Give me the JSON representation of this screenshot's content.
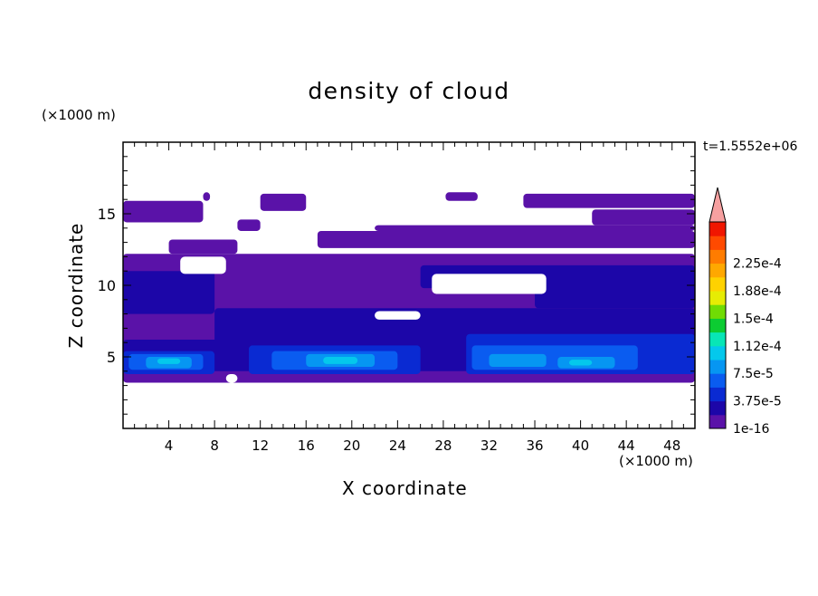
{
  "chart_data": {
    "type": "heatmap",
    "title": "density of cloud",
    "xlabel": "X coordinate",
    "ylabel": "Z coordinate",
    "x_unit": "(×1000 m)",
    "y_unit": "(×1000 m)",
    "time_label": "t=1.5552e+06",
    "xlim": [
      0,
      50
    ],
    "ylim": [
      0,
      20
    ],
    "x_ticks": [
      "4",
      "8",
      "12",
      "16",
      "20",
      "24",
      "28",
      "32",
      "36",
      "40",
      "44",
      "48"
    ],
    "y_ticks": [
      "5",
      "10",
      "15"
    ],
    "colorbar": {
      "levels": [
        "1e-16",
        "3.75e-5",
        "7.5e-5",
        "1.12e-4",
        "1.5e-4",
        "1.88e-4",
        "2.25e-4"
      ],
      "colors": [
        "#5a12a8",
        "#1c06a8",
        "#0a2ad2",
        "#0a5cf0",
        "#0696f2",
        "#04c8ec",
        "#08e6b6",
        "#0ccc32",
        "#70dc04",
        "#e6ec04",
        "#ffd200",
        "#ffa800",
        "#ff7c00",
        "#ff4a00",
        "#f01600"
      ],
      "extend_color": "#f6a0a0"
    },
    "regions": [
      {
        "level": 0,
        "x": [
          0,
          7
        ],
        "z": [
          14.4,
          15.9
        ]
      },
      {
        "level": 0,
        "x": [
          7,
          7.6
        ],
        "z": [
          15.9,
          16.5
        ]
      },
      {
        "level": 0,
        "x": [
          12,
          16
        ],
        "z": [
          15.2,
          16.4
        ]
      },
      {
        "level": 0,
        "x": [
          10,
          12
        ],
        "z": [
          13.8,
          14.6
        ]
      },
      {
        "level": 0,
        "x": [
          28.2,
          31
        ],
        "z": [
          15.9,
          16.5
        ]
      },
      {
        "level": 0,
        "x": [
          35,
          50
        ],
        "z": [
          15.4,
          16.4
        ]
      },
      {
        "level": 0,
        "x": [
          41,
          50
        ],
        "z": [
          14.2,
          15.3
        ]
      },
      {
        "level": 0,
        "x": [
          22,
          50
        ],
        "z": [
          13.8,
          14.2
        ]
      },
      {
        "level": 0,
        "x": [
          17,
          50
        ],
        "z": [
          12.6,
          13.8
        ]
      },
      {
        "level": 0,
        "x": [
          4,
          10
        ],
        "z": [
          12.2,
          13.2
        ]
      },
      {
        "level": 0,
        "x": [
          0,
          50
        ],
        "z": [
          3.4,
          12.2
        ]
      },
      {
        "level": 0,
        "x": [
          0,
          50
        ],
        "z": [
          3.2,
          4.4
        ]
      },
      {
        "level": 1,
        "x": [
          0,
          8
        ],
        "z": [
          8,
          11
        ]
      },
      {
        "level": 1,
        "x": [
          8,
          50
        ],
        "z": [
          4.8,
          8.4
        ]
      },
      {
        "level": 1,
        "x": [
          26,
          50
        ],
        "z": [
          9.8,
          11.4
        ]
      },
      {
        "level": 1,
        "x": [
          36,
          50
        ],
        "z": [
          8.4,
          10.6
        ]
      },
      {
        "level": 1,
        "x": [
          0,
          50
        ],
        "z": [
          4,
          6.2
        ]
      },
      {
        "level": 2,
        "x": [
          0,
          8
        ],
        "z": [
          3.8,
          5.4
        ]
      },
      {
        "level": 2,
        "x": [
          11,
          26
        ],
        "z": [
          3.8,
          5.8
        ]
      },
      {
        "level": 2,
        "x": [
          30,
          50
        ],
        "z": [
          3.8,
          6.6
        ]
      },
      {
        "level": 3,
        "x": [
          0.5,
          7
        ],
        "z": [
          4.1,
          5.2
        ]
      },
      {
        "level": 3,
        "x": [
          13,
          24
        ],
        "z": [
          4.1,
          5.4
        ]
      },
      {
        "level": 3,
        "x": [
          30.5,
          45
        ],
        "z": [
          4.1,
          5.8
        ]
      },
      {
        "level": 4,
        "x": [
          2,
          6
        ],
        "z": [
          4.2,
          5
        ]
      },
      {
        "level": 4,
        "x": [
          16,
          22
        ],
        "z": [
          4.3,
          5.2
        ]
      },
      {
        "level": 4,
        "x": [
          32,
          37
        ],
        "z": [
          4.3,
          5.2
        ]
      },
      {
        "level": 4,
        "x": [
          38,
          43
        ],
        "z": [
          4.2,
          5
        ]
      },
      {
        "level": 5,
        "x": [
          3,
          5
        ],
        "z": [
          4.5,
          4.9
        ]
      },
      {
        "level": 5,
        "x": [
          17.5,
          20.5
        ],
        "z": [
          4.5,
          5
        ]
      },
      {
        "level": 5,
        "x": [
          39,
          41
        ],
        "z": [
          4.4,
          4.8
        ]
      }
    ],
    "clear_areas": [
      {
        "x": [
          0,
          50
        ],
        "z": [
          16.6,
          20
        ]
      },
      {
        "x": [
          0,
          50
        ],
        "z": [
          0,
          3.2
        ]
      },
      {
        "x": [
          5,
          9
        ],
        "z": [
          10.8,
          12
        ]
      },
      {
        "x": [
          27,
          37
        ],
        "z": [
          9.4,
          10.8
        ]
      },
      {
        "x": [
          22,
          26
        ],
        "z": [
          7.6,
          8.2
        ]
      },
      {
        "x": [
          9,
          10
        ],
        "z": [
          3.2,
          3.8
        ]
      }
    ]
  }
}
